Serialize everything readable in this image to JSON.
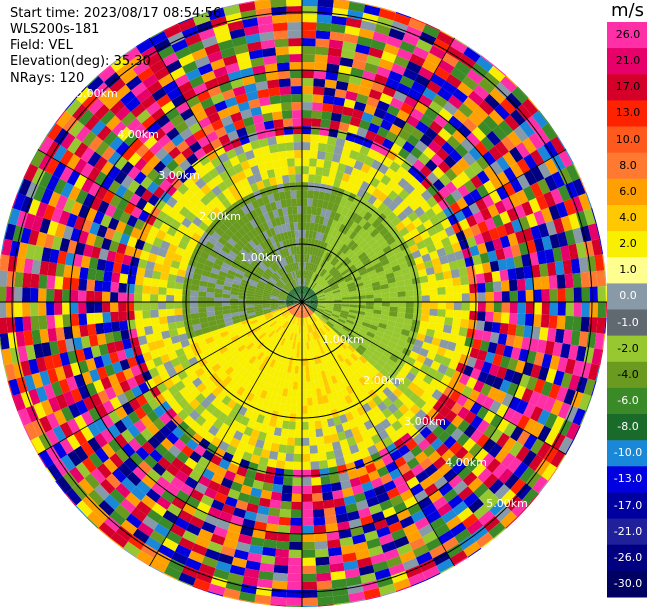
{
  "header": {
    "start_time": "Start time: 2023/08/17 08:54:56",
    "instrument": "WLS200s-181",
    "field": "Field: VEL",
    "elevation": "Elevation(deg): 35.30",
    "nrays": "NRays: 120"
  },
  "colorbar": {
    "title": "m/s",
    "labels": [
      "26.0",
      "21.0",
      "17.0",
      "13.0",
      "10.0",
      "8.0",
      "6.0",
      "4.0",
      "2.0",
      "1.0",
      "0.0",
      "-1.0",
      "-2.0",
      "-4.0",
      "-6.0",
      "-8.0",
      "-10.0",
      "-13.0",
      "-17.0",
      "-21.0",
      "-26.0",
      "-30.0"
    ],
    "colors": [
      "#ff2fa8",
      "#e8006a",
      "#d4002a",
      "#ff2200",
      "#ff5a1e",
      "#ff7a30",
      "#ffa000",
      "#ffc800",
      "#f8f000",
      "#ffff90",
      "#8899a8",
      "#606870",
      "#98c830",
      "#6a9a20",
      "#3a8a28",
      "#1a6a2a",
      "#1a88d8",
      "#0000e0",
      "#0000a0",
      "#20209a",
      "#000080",
      "#000060"
    ]
  },
  "chart_data": {
    "type": "heatmap",
    "field": "VEL",
    "units": "m/s",
    "nrays": 120,
    "rings": [
      "1.00km",
      "2.00km",
      "3.00km",
      "4.00km",
      "5.00km"
    ],
    "rings_second_set": [
      "1.00km",
      "2.00km",
      "3.00km",
      "4.00km",
      "5.00km"
    ],
    "radial_lines_deg": [
      0,
      30,
      60,
      90,
      120,
      150,
      180,
      210,
      240,
      270,
      300,
      330
    ],
    "value_range": [
      -30,
      30
    ]
  }
}
